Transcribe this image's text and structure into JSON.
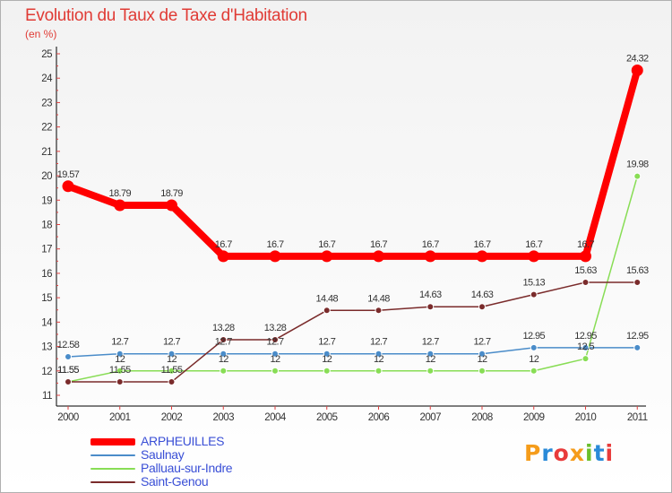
{
  "chart_data": {
    "type": "line",
    "title": "Evolution du Taux de Taxe d'Habitation",
    "subtitle": "(en %)",
    "x": [
      "2000",
      "2001",
      "2002",
      "2003",
      "2004",
      "2005",
      "2006",
      "2007",
      "2008",
      "2009",
      "2010",
      "2011"
    ],
    "ylim": [
      11,
      25
    ],
    "yticks": [
      "11",
      "12",
      "13",
      "14",
      "15",
      "16",
      "17",
      "18",
      "19",
      "20",
      "21",
      "22",
      "23",
      "24",
      "25"
    ],
    "grid": false,
    "legend_position": "bottom-left",
    "series": [
      {
        "name": "ARPHEUILLES",
        "color": "#ff0000",
        "values": [
          19.57,
          18.79,
          18.79,
          16.7,
          16.7,
          16.7,
          16.7,
          16.7,
          16.7,
          16.7,
          16.7,
          24.32
        ],
        "labels": [
          "19.57",
          "18.79",
          "18.79",
          "16.7",
          "16.7",
          "16.7",
          "16.7",
          "16.7",
          "16.7",
          "16.7",
          "16.7",
          "24.32"
        ]
      },
      {
        "name": "Saulnay",
        "color": "#4a8cc9",
        "values": [
          12.58,
          12.7,
          12.7,
          12.7,
          12.7,
          12.7,
          12.7,
          12.7,
          12.7,
          12.95,
          12.95,
          12.95
        ],
        "labels": [
          "12.58",
          "12.7",
          "12.7",
          "12.7",
          "12.7",
          "12.7",
          "12.7",
          "12.7",
          "12.7",
          "12.95",
          "12.95",
          "12.95"
        ]
      },
      {
        "name": "Palluau-sur-Indre",
        "color": "#88dd55",
        "values": [
          11.55,
          12,
          12,
          12,
          12,
          12,
          12,
          12,
          12,
          12,
          12.5,
          19.98
        ],
        "labels": [
          "11.55",
          "12",
          "12",
          "12",
          "12",
          "12",
          "12",
          "12",
          "12",
          "12",
          "12.5",
          "19.98"
        ]
      },
      {
        "name": "Saint-Genou",
        "color": "#7a2b2b",
        "values": [
          11.55,
          11.55,
          11.55,
          13.28,
          13.28,
          14.48,
          14.48,
          14.63,
          14.63,
          15.13,
          15.63,
          15.63
        ],
        "labels": [
          "11.55",
          "11.55",
          "11.55",
          "13.28",
          "13.28",
          "14.48",
          "14.48",
          "14.63",
          "14.63",
          "15.13",
          "15.63",
          "15.63"
        ]
      }
    ]
  },
  "brand": {
    "text": "Proxiti",
    "colors": [
      "#f59c1a",
      "#2a8ad8",
      "#e83b3b",
      "#f59c1a",
      "#6bbf2c",
      "#2a8ad8",
      "#e83b3b"
    ]
  }
}
